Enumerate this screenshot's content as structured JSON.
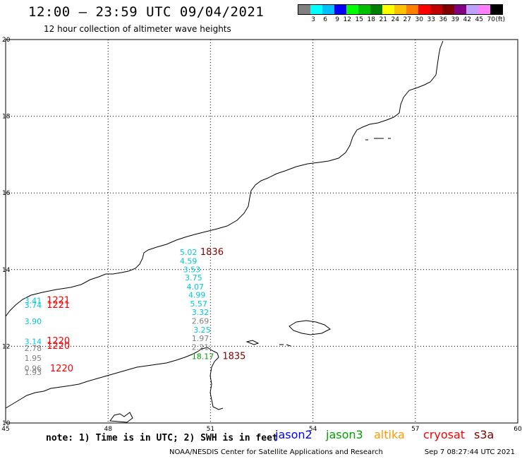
{
  "header": {
    "title": "12:00 – 23:59 UTC 09/04/2021",
    "subtitle": "12 hour collection of altimeter wave heights"
  },
  "legend": {
    "colors": [
      "#808080",
      "#00ffff",
      "#00c0ff",
      "#0000ff",
      "#00ff00",
      "#00c000",
      "#008000",
      "#ffff00",
      "#ffc000",
      "#ff8000",
      "#ff0000",
      "#c00000",
      "#800000",
      "#800080",
      "#c0a0ff",
      "#ff80ff",
      "#000000"
    ],
    "labels": [
      "3",
      "6",
      "9",
      "12",
      "15",
      "18",
      "21",
      "24",
      "27",
      "30",
      "33",
      "36",
      "39",
      "42",
      "45",
      "70"
    ],
    "unit": "(ft)"
  },
  "axes": {
    "lon_labels": [
      "45",
      "48",
      "51",
      "54",
      "57",
      "60"
    ],
    "lat_labels": [
      "20",
      "18",
      "16",
      "14",
      "12",
      "10"
    ]
  },
  "observations": [
    {
      "lon": 50.1,
      "lat": 14.38,
      "text": "5.02",
      "color": "#00c8d8"
    },
    {
      "lon": 50.1,
      "lat": 14.15,
      "text": "4.59",
      "color": "#00c8d8"
    },
    {
      "lon": 50.2,
      "lat": 13.93,
      "text": "3.53",
      "color": "#00c8d8"
    },
    {
      "lon": 50.25,
      "lat": 13.72,
      "text": "3.75",
      "color": "#00c8d8"
    },
    {
      "lon": 50.3,
      "lat": 13.48,
      "text": "4.07",
      "color": "#00c8d8"
    },
    {
      "lon": 50.35,
      "lat": 13.27,
      "text": "4.99",
      "color": "#00c8d8"
    },
    {
      "lon": 50.4,
      "lat": 13.04,
      "text": "5.57",
      "color": "#00c8d8"
    },
    {
      "lon": 50.45,
      "lat": 12.82,
      "text": "3.32",
      "color": "#00c8d8"
    },
    {
      "lon": 50.45,
      "lat": 12.59,
      "text": "2.69",
      "color": "#808080"
    },
    {
      "lon": 50.5,
      "lat": 12.36,
      "text": "3.25",
      "color": "#00c8d8"
    },
    {
      "lon": 50.45,
      "lat": 12.14,
      "text": "1.97",
      "color": "#808080"
    },
    {
      "lon": 50.45,
      "lat": 11.91,
      "text": "2.21",
      "color": "#808080"
    },
    {
      "lon": 50.45,
      "lat": 11.67,
      "text": "18.17",
      "color": "#00a000"
    },
    {
      "lon": 45.55,
      "lat": 13.12,
      "text": "3.41",
      "color": "#00c8d8"
    },
    {
      "lon": 45.55,
      "lat": 13.0,
      "text": "3.74",
      "color": "#00c8d8"
    },
    {
      "lon": 45.55,
      "lat": 12.58,
      "text": "3.90",
      "color": "#00c8d8"
    },
    {
      "lon": 45.55,
      "lat": 12.05,
      "text": "3.14",
      "color": "#00c8d8"
    },
    {
      "lon": 45.55,
      "lat": 11.88,
      "text": "2.78",
      "color": "#808080"
    },
    {
      "lon": 45.55,
      "lat": 11.62,
      "text": "1.95",
      "color": "#808080"
    },
    {
      "lon": 45.55,
      "lat": 11.35,
      "text": "0.96",
      "color": "#808080"
    },
    {
      "lon": 45.55,
      "lat": 11.25,
      "text": "1.93",
      "color": "#808080"
    }
  ],
  "passes": [
    {
      "lon": 50.7,
      "lat": 14.38,
      "text": "1836",
      "color": "#800000"
    },
    {
      "lon": 51.35,
      "lat": 11.67,
      "text": "1835",
      "color": "#800000"
    },
    {
      "lon": 46.2,
      "lat": 13.12,
      "text": "1221",
      "color": "#ff0000"
    },
    {
      "lon": 46.2,
      "lat": 13.0,
      "text": "1221",
      "color": "#ff0000"
    },
    {
      "lon": 46.2,
      "lat": 12.06,
      "text": "1220",
      "color": "#ff0000"
    },
    {
      "lon": 46.2,
      "lat": 11.93,
      "text": "1220",
      "color": "#ff0000"
    },
    {
      "lon": 46.3,
      "lat": 11.34,
      "text": "1220",
      "color": "#ff0000"
    }
  ],
  "footer": {
    "note": "note: 1) Time is in UTC; 2) SWH is in feet",
    "satellites": [
      {
        "name": "jason2",
        "color": "#0000ff"
      },
      {
        "name": "jason3",
        "color": "#00a000"
      },
      {
        "name": "altika",
        "color": "#ff9900"
      },
      {
        "name": "cryosat",
        "color": "#ff0000"
      },
      {
        "name": "s3a",
        "color": "#800000"
      }
    ],
    "credit": "NOAA/NESDIS Center for Satellite Applications and Research",
    "timestamp": "Sep  7 08:27:44 UTC 2021"
  }
}
